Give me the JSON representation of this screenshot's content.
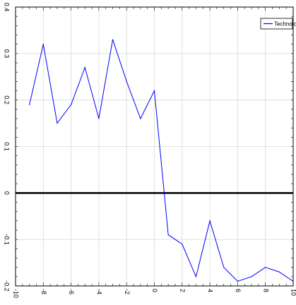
{
  "chart_data": {
    "type": "line",
    "title": "",
    "xlabel": "",
    "ylabel": "",
    "xlim": [
      -10,
      10
    ],
    "ylim": [
      -0.2,
      0.4
    ],
    "grid": true,
    "legend_position": "top-right",
    "x_ticks": [
      -10,
      -8,
      -6,
      -4,
      -2,
      0,
      2,
      4,
      6,
      8,
      10
    ],
    "x_tick_labels": [
      "-10",
      "-8",
      "-6",
      "-4",
      "-2",
      "0",
      "2",
      "4",
      "6",
      "8",
      "10"
    ],
    "y_ticks": [
      -0.2,
      -0.1,
      0,
      0.1,
      0.2,
      0.3,
      0.4
    ],
    "y_tick_labels": [
      "-0.2",
      "-0.1",
      "0",
      "0.1",
      "0.2",
      "0.3",
      "0.4"
    ],
    "zero_line": 0,
    "series": [
      {
        "name": "Technology",
        "color": "#0000ff",
        "x": [
          -9,
          -8,
          -7,
          -6,
          -5,
          -4,
          -3,
          -2,
          -1,
          0,
          1,
          2,
          3,
          4,
          5,
          6,
          7,
          8,
          9,
          10
        ],
        "y": [
          0.19,
          0.32,
          0.15,
          0.19,
          0.27,
          0.16,
          0.33,
          0.24,
          0.16,
          0.22,
          -0.09,
          -0.11,
          -0.18,
          -0.06,
          -0.16,
          -0.19,
          -0.18,
          -0.16,
          -0.17,
          -0.19
        ]
      }
    ]
  }
}
